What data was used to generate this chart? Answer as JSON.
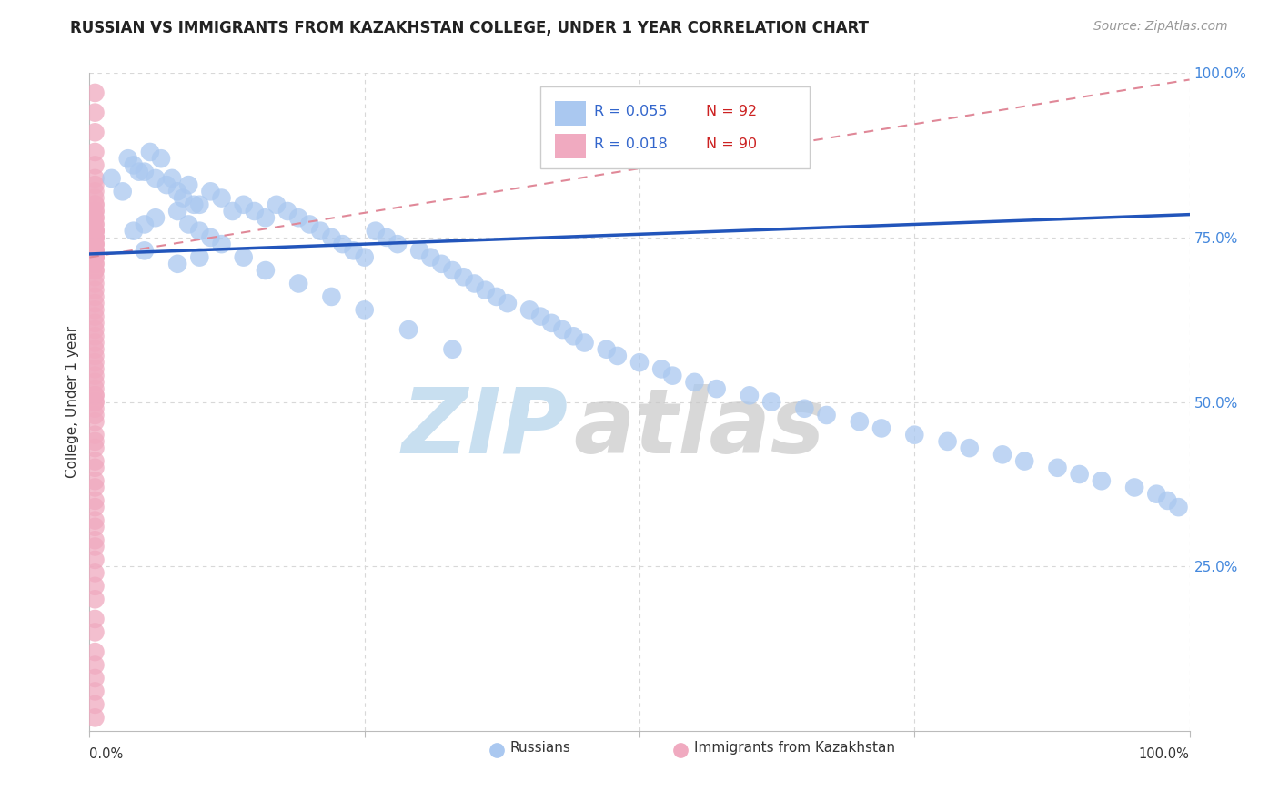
{
  "title": "RUSSIAN VS IMMIGRANTS FROM KAZAKHSTAN COLLEGE, UNDER 1 YEAR CORRELATION CHART",
  "source_text": "Source: ZipAtlas.com",
  "ylabel": "College, Under 1 year",
  "legend_r1": "0.055",
  "legend_n1": "92",
  "legend_r2": "0.018",
  "legend_n2": "90",
  "legend_label1": "Russians",
  "legend_label2": "Immigrants from Kazakhstan",
  "blue_color": "#aac8f0",
  "pink_color": "#f0aac0",
  "blue_line_color": "#2255bb",
  "pink_line_color": "#e08898",
  "xlim": [
    0.0,
    1.0
  ],
  "ylim": [
    0.0,
    1.0
  ],
  "background_color": "#ffffff",
  "grid_color": "#d8d8d8",
  "title_fontsize": 12,
  "watermark_zip": "ZIP",
  "watermark_atlas": "atlas",
  "watermark_color": "#c8dff0",
  "blue_line_x": [
    0.0,
    1.0
  ],
  "blue_line_y": [
    0.725,
    0.785
  ],
  "pink_line_x": [
    0.0,
    1.0
  ],
  "pink_line_y": [
    0.72,
    0.99
  ],
  "blue_x": [
    0.02,
    0.03,
    0.035,
    0.04,
    0.045,
    0.05,
    0.055,
    0.06,
    0.065,
    0.07,
    0.075,
    0.08,
    0.085,
    0.09,
    0.095,
    0.1,
    0.11,
    0.12,
    0.13,
    0.14,
    0.15,
    0.16,
    0.17,
    0.18,
    0.19,
    0.2,
    0.21,
    0.22,
    0.23,
    0.24,
    0.25,
    0.26,
    0.27,
    0.28,
    0.3,
    0.31,
    0.32,
    0.33,
    0.34,
    0.35,
    0.36,
    0.37,
    0.38,
    0.4,
    0.41,
    0.42,
    0.43,
    0.44,
    0.45,
    0.47,
    0.48,
    0.5,
    0.52,
    0.53,
    0.55,
    0.57,
    0.6,
    0.62,
    0.65,
    0.67,
    0.7,
    0.72,
    0.75,
    0.78,
    0.8,
    0.83,
    0.85,
    0.88,
    0.9,
    0.92,
    0.95,
    0.97,
    0.98,
    0.99,
    0.04,
    0.05,
    0.06,
    0.08,
    0.09,
    0.1,
    0.11,
    0.12,
    0.14,
    0.16,
    0.19,
    0.22,
    0.25,
    0.29,
    0.33,
    0.05,
    0.08,
    0.1
  ],
  "blue_y": [
    0.84,
    0.82,
    0.87,
    0.86,
    0.85,
    0.85,
    0.88,
    0.84,
    0.87,
    0.83,
    0.84,
    0.82,
    0.81,
    0.83,
    0.8,
    0.8,
    0.82,
    0.81,
    0.79,
    0.8,
    0.79,
    0.78,
    0.8,
    0.79,
    0.78,
    0.77,
    0.76,
    0.75,
    0.74,
    0.73,
    0.72,
    0.76,
    0.75,
    0.74,
    0.73,
    0.72,
    0.71,
    0.7,
    0.69,
    0.68,
    0.67,
    0.66,
    0.65,
    0.64,
    0.63,
    0.62,
    0.61,
    0.6,
    0.59,
    0.58,
    0.57,
    0.56,
    0.55,
    0.54,
    0.53,
    0.52,
    0.51,
    0.5,
    0.49,
    0.48,
    0.47,
    0.46,
    0.45,
    0.44,
    0.43,
    0.42,
    0.41,
    0.4,
    0.39,
    0.38,
    0.37,
    0.36,
    0.35,
    0.34,
    0.76,
    0.77,
    0.78,
    0.79,
    0.77,
    0.76,
    0.75,
    0.74,
    0.72,
    0.7,
    0.68,
    0.66,
    0.64,
    0.61,
    0.58,
    0.73,
    0.71,
    0.72
  ],
  "pink_x": [
    0.005,
    0.005,
    0.005,
    0.005,
    0.005,
    0.005,
    0.005,
    0.005,
    0.005,
    0.005,
    0.005,
    0.005,
    0.005,
    0.005,
    0.005,
    0.005,
    0.005,
    0.005,
    0.005,
    0.005,
    0.005,
    0.005,
    0.005,
    0.005,
    0.005,
    0.005,
    0.005,
    0.005,
    0.005,
    0.005,
    0.005,
    0.005,
    0.005,
    0.005,
    0.005,
    0.005,
    0.005,
    0.005,
    0.005,
    0.005,
    0.005,
    0.005,
    0.005,
    0.005,
    0.005,
    0.005,
    0.005,
    0.005,
    0.005,
    0.005,
    0.005,
    0.005,
    0.005,
    0.005,
    0.005,
    0.005,
    0.005,
    0.005,
    0.005,
    0.005,
    0.005,
    0.005,
    0.005,
    0.005,
    0.005,
    0.005,
    0.005,
    0.005,
    0.005,
    0.005,
    0.005,
    0.005,
    0.005,
    0.005,
    0.005,
    0.005,
    0.005,
    0.005,
    0.005,
    0.005,
    0.005,
    0.005,
    0.005,
    0.005,
    0.005,
    0.005,
    0.005,
    0.005,
    0.005,
    0.005
  ],
  "pink_y": [
    0.97,
    0.94,
    0.91,
    0.88,
    0.86,
    0.84,
    0.83,
    0.82,
    0.81,
    0.8,
    0.8,
    0.79,
    0.79,
    0.78,
    0.78,
    0.77,
    0.77,
    0.76,
    0.76,
    0.76,
    0.75,
    0.75,
    0.75,
    0.74,
    0.74,
    0.73,
    0.73,
    0.73,
    0.72,
    0.72,
    0.72,
    0.71,
    0.71,
    0.7,
    0.7,
    0.69,
    0.68,
    0.67,
    0.66,
    0.65,
    0.64,
    0.63,
    0.62,
    0.61,
    0.6,
    0.59,
    0.58,
    0.57,
    0.56,
    0.55,
    0.54,
    0.53,
    0.52,
    0.51,
    0.5,
    0.49,
    0.48,
    0.47,
    0.45,
    0.44,
    0.43,
    0.41,
    0.4,
    0.38,
    0.37,
    0.35,
    0.34,
    0.32,
    0.31,
    0.29,
    0.28,
    0.26,
    0.24,
    0.22,
    0.2,
    0.17,
    0.15,
    0.12,
    0.1,
    0.08,
    0.06,
    0.04,
    0.02,
    0.76,
    0.75,
    0.74,
    0.73,
    0.72,
    0.51,
    0.5
  ]
}
